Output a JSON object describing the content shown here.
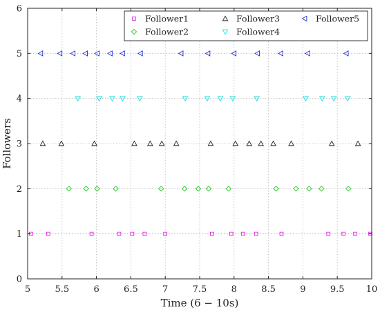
{
  "chart_data": {
    "type": "scatter",
    "xlabel": "Time (6 − 10s)",
    "ylabel": "Followers",
    "xlim": [
      5,
      10
    ],
    "ylim": [
      0,
      6
    ],
    "xticks": [
      "5",
      "5.5",
      "6",
      "6.5",
      "7",
      "7.5",
      "8",
      "8.5",
      "9",
      "9.5",
      "10"
    ],
    "yticks": [
      "0",
      "1",
      "2",
      "3",
      "4",
      "5",
      "6"
    ],
    "grid": true,
    "legend_position": "top-right",
    "series": [
      {
        "name": "Follower1",
        "marker": "square",
        "color": "#e020e0",
        "y": 1,
        "x": [
          5.05,
          5.3,
          5.93,
          6.33,
          6.52,
          6.7,
          7.0,
          7.68,
          7.96,
          8.13,
          8.32,
          8.69,
          9.37,
          9.59,
          9.76,
          9.98
        ]
      },
      {
        "name": "Follower2",
        "marker": "diamond",
        "color": "#22cc22",
        "y": 2,
        "x": [
          5.6,
          5.85,
          6.01,
          6.28,
          6.94,
          7.28,
          7.48,
          7.63,
          7.92,
          8.61,
          8.9,
          9.09,
          9.27,
          9.66
        ]
      },
      {
        "name": "Follower3",
        "marker": "triangle-up",
        "color": "#222222",
        "y": 3,
        "x": [
          5.22,
          5.49,
          5.97,
          6.55,
          6.78,
          6.95,
          7.16,
          7.66,
          8.02,
          8.22,
          8.39,
          8.57,
          8.83,
          9.42,
          9.8
        ]
      },
      {
        "name": "Follower4",
        "marker": "triangle-down",
        "color": "#22e0e0",
        "y": 4,
        "x": [
          5.73,
          6.04,
          6.23,
          6.38,
          6.63,
          7.29,
          7.61,
          7.8,
          7.98,
          8.33,
          9.04,
          9.28,
          9.45,
          9.65
        ]
      },
      {
        "name": "Follower5",
        "marker": "triangle-left",
        "color": "#2233cc",
        "y": 5,
        "x": [
          5.19,
          5.47,
          5.66,
          5.84,
          6.01,
          6.2,
          6.38,
          6.64,
          7.23,
          7.62,
          8.0,
          8.34,
          8.68,
          9.07,
          9.63
        ]
      }
    ]
  }
}
